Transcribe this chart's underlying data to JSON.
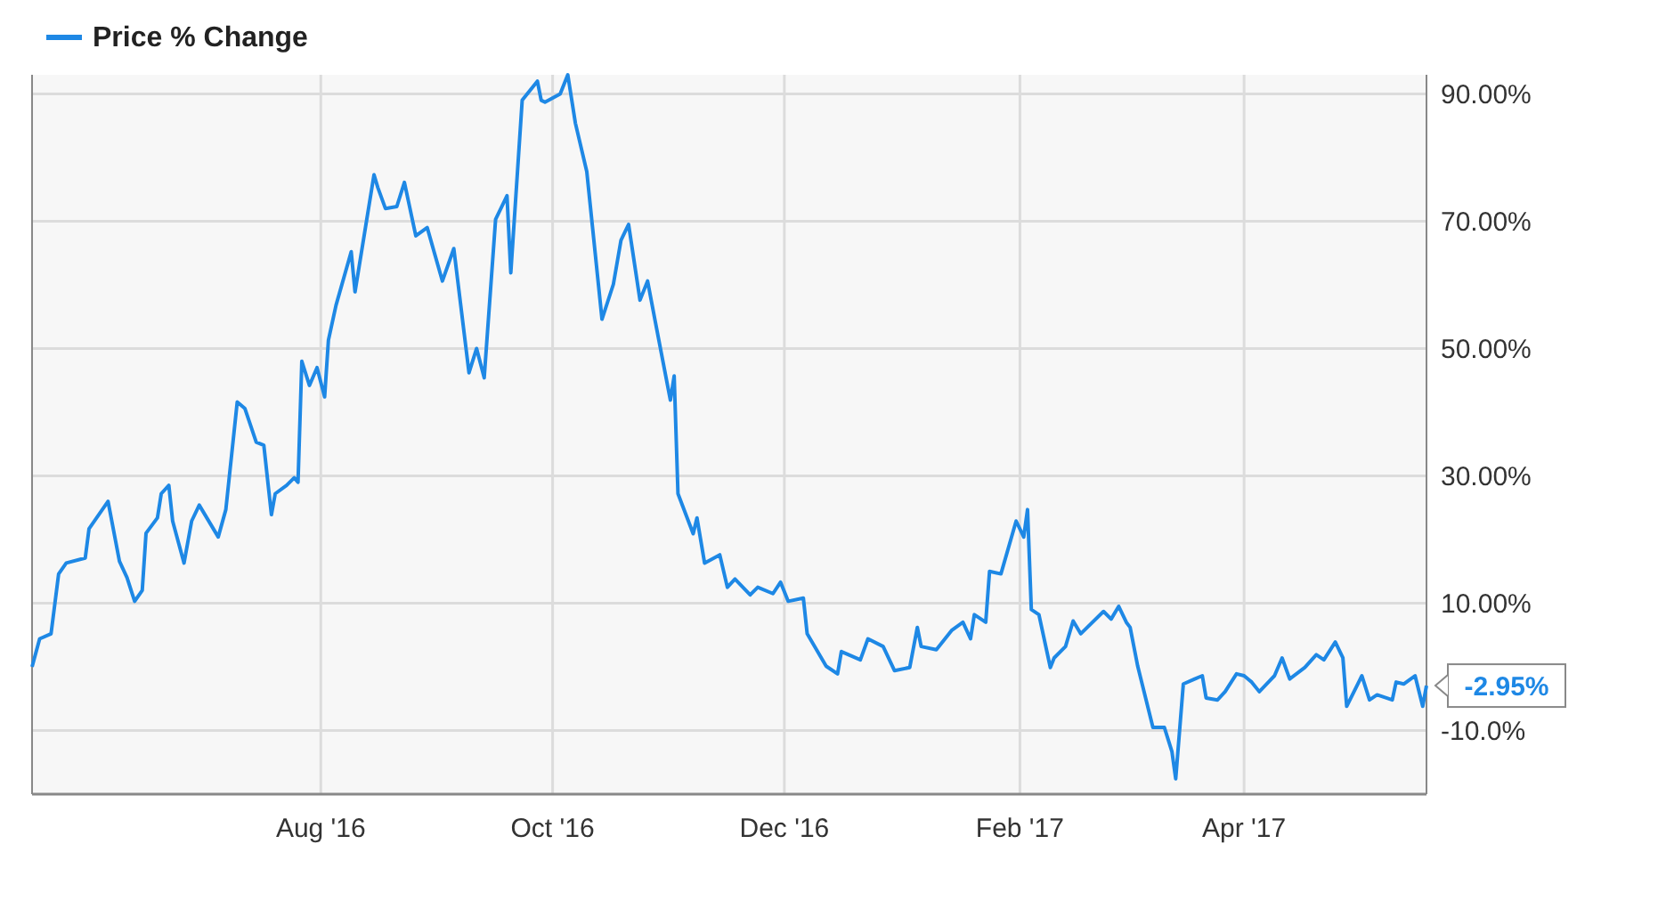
{
  "chart_data": {
    "type": "line",
    "legend": "top left",
    "grid": true,
    "marker": "none",
    "line_style": "solid",
    "xlim": [
      "2016-05-17",
      "2017-05-19"
    ],
    "xticks": [
      {
        "value": "2016-08-01",
        "label": "Aug '16"
      },
      {
        "value": "2016-10-01",
        "label": "Oct '16"
      },
      {
        "value": "2016-12-01",
        "label": "Dec '16"
      },
      {
        "value": "2017-02-01",
        "label": "Feb '17"
      },
      {
        "value": "2017-04-01",
        "label": "Apr '17"
      }
    ],
    "ylim": [
      -20,
      93
    ],
    "yticks": [
      {
        "value": -10,
        "label": "-10.0%"
      },
      {
        "value": 10,
        "label": "10.00%"
      },
      {
        "value": 30,
        "label": "30.00%"
      },
      {
        "value": 50,
        "label": "50.00%"
      },
      {
        "value": 70,
        "label": "70.00%"
      },
      {
        "value": 90,
        "label": "90.00%"
      }
    ],
    "annotations": [
      {
        "text": "-2.95%",
        "x": "2017-05-19",
        "y": -2.95
      }
    ],
    "series": [
      {
        "name": "Price % Change",
        "color": "#1e88e5",
        "x": [
          "2016-05-17",
          "2016-05-19",
          "2016-05-22",
          "2016-05-24",
          "2016-05-26",
          "2016-05-31",
          "2016-06-01",
          "2016-06-06",
          "2016-06-09",
          "2016-06-11",
          "2016-06-13",
          "2016-06-15",
          "2016-06-16",
          "2016-06-19",
          "2016-06-20",
          "2016-06-22",
          "2016-06-23",
          "2016-06-26",
          "2016-06-28",
          "2016-06-30",
          "2016-07-05",
          "2016-07-07",
          "2016-07-10",
          "2016-07-12",
          "2016-07-15",
          "2016-07-17",
          "2016-07-19",
          "2016-07-20",
          "2016-07-23",
          "2016-07-25",
          "2016-07-26",
          "2016-07-27",
          "2016-07-29",
          "2016-07-31",
          "2016-08-02",
          "2016-08-03",
          "2016-08-05",
          "2016-08-09",
          "2016-08-10",
          "2016-08-15",
          "2016-08-16",
          "2016-08-18",
          "2016-08-21",
          "2016-08-23",
          "2016-08-26",
          "2016-08-29",
          "2016-09-02",
          "2016-09-05",
          "2016-09-09",
          "2016-09-11",
          "2016-09-13",
          "2016-09-16",
          "2016-09-19",
          "2016-09-20",
          "2016-09-23",
          "2016-09-27",
          "2016-09-28",
          "2016-09-29",
          "2016-10-03",
          "2016-10-05",
          "2016-10-07",
          "2016-10-10",
          "2016-10-14",
          "2016-10-17",
          "2016-10-19",
          "2016-10-21",
          "2016-10-24",
          "2016-10-26",
          "2016-10-28",
          "2016-11-01",
          "2016-11-02",
          "2016-11-03",
          "2016-11-07",
          "2016-11-08",
          "2016-11-10",
          "2016-11-14",
          "2016-11-16",
          "2016-11-18",
          "2016-11-22",
          "2016-11-24",
          "2016-11-28",
          "2016-11-30",
          "2016-12-02",
          "2016-12-06",
          "2016-12-07",
          "2016-12-12",
          "2016-12-15",
          "2016-12-16",
          "2016-12-21",
          "2016-12-23",
          "2016-12-27",
          "2016-12-30",
          "2017-01-03",
          "2017-01-05",
          "2017-01-06",
          "2017-01-10",
          "2017-01-14",
          "2017-01-17",
          "2017-01-19",
          "2017-01-20",
          "2017-01-23",
          "2017-01-24",
          "2017-01-27",
          "2017-01-31",
          "2017-02-02",
          "2017-02-03",
          "2017-02-04",
          "2017-02-06",
          "2017-02-09",
          "2017-02-10",
          "2017-02-13",
          "2017-02-15",
          "2017-02-17",
          "2017-02-23",
          "2017-02-25",
          "2017-02-27",
          "2017-03-01",
          "2017-03-02",
          "2017-03-04",
          "2017-03-08",
          "2017-03-11",
          "2017-03-13",
          "2017-03-14",
          "2017-03-16",
          "2017-03-19",
          "2017-03-21",
          "2017-03-22",
          "2017-03-25",
          "2017-03-27",
          "2017-03-30",
          "2017-04-01",
          "2017-04-03",
          "2017-04-05",
          "2017-04-09",
          "2017-04-11",
          "2017-04-13",
          "2017-04-17",
          "2017-04-20",
          "2017-04-22",
          "2017-04-25",
          "2017-04-27",
          "2017-04-28",
          "2017-05-02",
          "2017-05-04",
          "2017-05-06",
          "2017-05-10",
          "2017-05-11",
          "2017-05-13",
          "2017-05-16",
          "2017-05-18",
          "2017-05-19"
        ],
        "values": [
          0,
          4.4,
          5.2,
          14.6,
          16.3,
          17.1,
          21.7,
          26,
          16.6,
          14,
          10.3,
          12,
          21,
          23.4,
          27.2,
          28.5,
          22.9,
          16.3,
          22.9,
          25.4,
          20.4,
          24.7,
          41.6,
          40.6,
          35.3,
          34.8,
          23.9,
          27.2,
          28.5,
          29.7,
          29,
          48,
          44.2,
          47,
          42.4,
          51.3,
          56.8,
          65.2,
          58.9,
          77.3,
          75.3,
          72,
          72.3,
          76.1,
          67.7,
          69,
          60.6,
          65.7,
          46.2,
          50,
          45.4,
          70.3,
          74,
          61.9,
          89,
          92,
          89,
          88.7,
          90,
          93,
          85.4,
          77.8,
          54.6,
          60.1,
          67,
          69.5,
          57.6,
          60.6,
          54.3,
          41.9,
          45.7,
          27.2,
          20.9,
          23.4,
          16.3,
          17.6,
          12.5,
          13.8,
          11.3,
          12.5,
          11.5,
          13.3,
          10.3,
          10.8,
          5.2,
          0.1,
          -1.1,
          2.4,
          1.1,
          4.4,
          3.2,
          -0.6,
          -0.1,
          6.2,
          3.2,
          2.7,
          5.7,
          7,
          4.4,
          8.2,
          7,
          15,
          14.6,
          22.9,
          20.4,
          24.7,
          9,
          8.2,
          -0.1,
          1.4,
          3.2,
          7.2,
          5.2,
          8.7,
          7.5,
          9.5,
          7,
          6.2,
          0.1,
          -9.5,
          -9.5,
          -13.3,
          -17.6,
          -2.7,
          -1.9,
          -1.4,
          -4.9,
          -5.2,
          -3.9,
          -1.1,
          -1.4,
          -2.4,
          -3.9,
          -1.4,
          1.4,
          -1.9,
          -0.1,
          1.9,
          1.1,
          3.9,
          1.4,
          -6.2,
          -1.4,
          -5.2,
          -4.4,
          -5.2,
          -2.4,
          -2.7,
          -1.4,
          -6.2,
          -2.95
        ]
      }
    ]
  }
}
